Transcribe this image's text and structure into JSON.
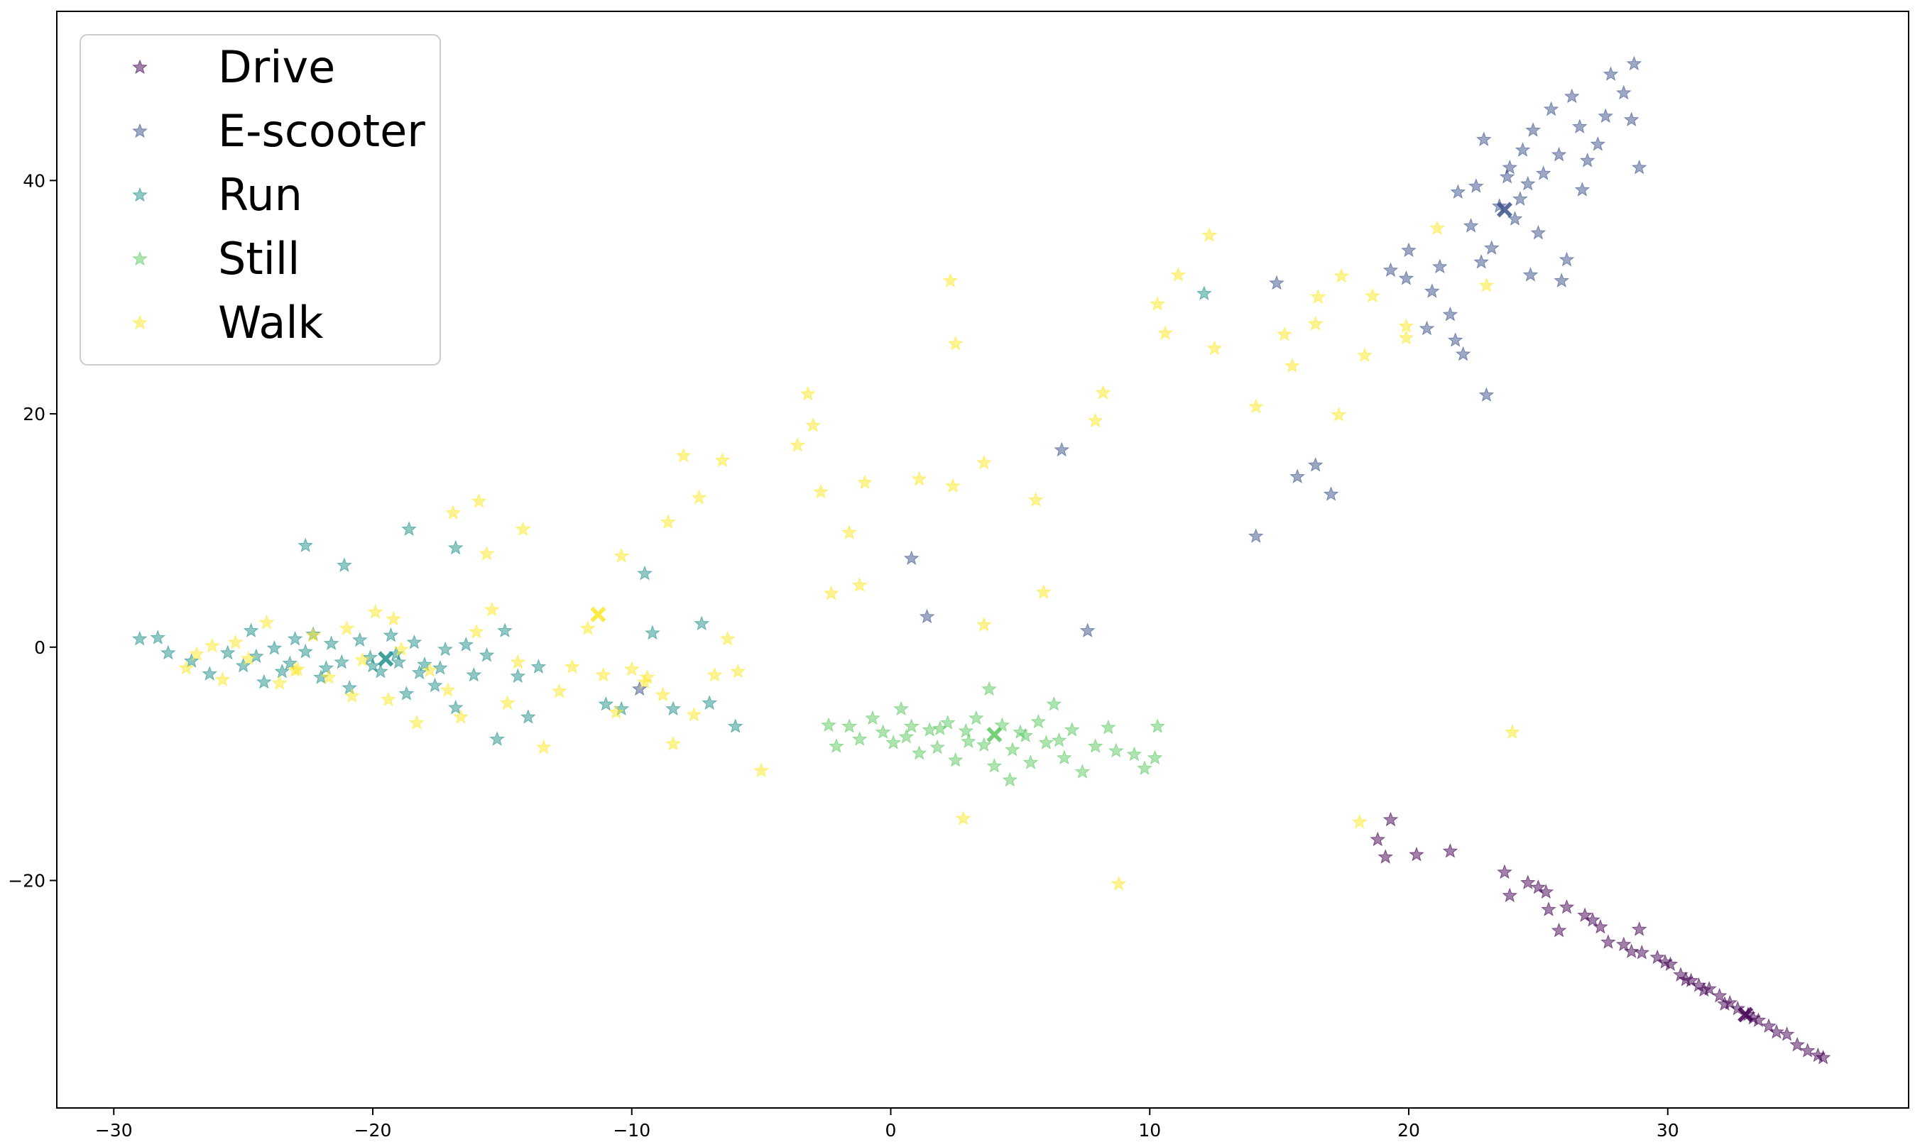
{
  "chart_data": {
    "type": "scatter",
    "marker": "star",
    "title": "",
    "xlabel": "",
    "ylabel": "",
    "xlim": [
      -32.2,
      39.3
    ],
    "ylim": [
      -39.5,
      54.5
    ],
    "xticks": [
      -30,
      -20,
      -10,
      0,
      10,
      20,
      30
    ],
    "yticks": [
      -20,
      0,
      20,
      40
    ],
    "xtick_labels": [
      "−30",
      "−20",
      "−10",
      "0",
      "10",
      "20",
      "30"
    ],
    "ytick_labels": [
      "−20",
      "0",
      "20",
      "40"
    ],
    "grid": false,
    "legend_position": "top-left",
    "series": [
      {
        "name": "Drive",
        "color": "#440154",
        "centroid": [
          33.0,
          -31.5
        ],
        "points": [
          [
            18.8,
            -16.5
          ],
          [
            19.1,
            -18.0
          ],
          [
            19.3,
            -14.8
          ],
          [
            20.3,
            -17.8
          ],
          [
            21.6,
            -17.5
          ],
          [
            23.7,
            -19.3
          ],
          [
            23.9,
            -21.3
          ],
          [
            24.6,
            -20.2
          ],
          [
            25.0,
            -20.6
          ],
          [
            25.3,
            -21.0
          ],
          [
            25.4,
            -22.5
          ],
          [
            26.1,
            -22.3
          ],
          [
            25.8,
            -24.3
          ],
          [
            26.8,
            -23.0
          ],
          [
            27.1,
            -23.4
          ],
          [
            27.4,
            -24.0
          ],
          [
            27.7,
            -25.3
          ],
          [
            28.3,
            -25.5
          ],
          [
            28.9,
            -24.2
          ],
          [
            29.0,
            -26.2
          ],
          [
            29.6,
            -26.6
          ],
          [
            30.1,
            -27.2
          ],
          [
            30.5,
            -28.1
          ],
          [
            30.9,
            -28.6
          ],
          [
            31.2,
            -29.0
          ],
          [
            31.6,
            -29.3
          ],
          [
            32.0,
            -29.9
          ],
          [
            32.4,
            -30.5
          ],
          [
            32.7,
            -31.0
          ],
          [
            33.1,
            -31.5
          ],
          [
            33.5,
            -32.0
          ],
          [
            33.9,
            -32.5
          ],
          [
            34.2,
            -33.0
          ],
          [
            34.6,
            -33.2
          ],
          [
            35.0,
            -34.1
          ],
          [
            35.4,
            -34.6
          ],
          [
            35.8,
            -35.0
          ],
          [
            36.0,
            -35.2
          ],
          [
            30.7,
            -28.5
          ],
          [
            31.4,
            -29.4
          ],
          [
            32.2,
            -30.6
          ],
          [
            33.3,
            -31.8
          ],
          [
            28.6,
            -26.1
          ],
          [
            29.9,
            -27.0
          ]
        ]
      },
      {
        "name": "E-scooter",
        "color": "#3b528b",
        "centroid": [
          23.7,
          37.5
        ],
        "points": [
          [
            -9.7,
            -3.6
          ],
          [
            0.8,
            7.6
          ],
          [
            1.4,
            2.6
          ],
          [
            6.6,
            16.9
          ],
          [
            7.6,
            1.4
          ],
          [
            14.1,
            9.5
          ],
          [
            14.9,
            31.2
          ],
          [
            15.7,
            14.6
          ],
          [
            16.4,
            15.6
          ],
          [
            17.0,
            13.1
          ],
          [
            19.3,
            32.3
          ],
          [
            19.9,
            31.6
          ],
          [
            20.0,
            34.0
          ],
          [
            20.7,
            27.3
          ],
          [
            20.9,
            30.5
          ],
          [
            21.2,
            32.6
          ],
          [
            21.6,
            28.5
          ],
          [
            21.8,
            26.3
          ],
          [
            22.1,
            25.1
          ],
          [
            22.4,
            36.1
          ],
          [
            22.6,
            39.5
          ],
          [
            22.8,
            33.0
          ],
          [
            23.0,
            21.6
          ],
          [
            23.2,
            34.2
          ],
          [
            23.5,
            37.8
          ],
          [
            23.9,
            41.1
          ],
          [
            24.1,
            36.7
          ],
          [
            24.4,
            42.6
          ],
          [
            24.6,
            39.7
          ],
          [
            24.8,
            44.3
          ],
          [
            25.2,
            40.6
          ],
          [
            25.5,
            46.1
          ],
          [
            25.8,
            42.2
          ],
          [
            26.1,
            33.2
          ],
          [
            26.3,
            47.2
          ],
          [
            26.6,
            44.6
          ],
          [
            26.9,
            41.7
          ],
          [
            27.3,
            43.1
          ],
          [
            27.6,
            45.5
          ],
          [
            27.8,
            49.1
          ],
          [
            28.3,
            47.5
          ],
          [
            28.6,
            45.2
          ],
          [
            28.7,
            50.0
          ],
          [
            28.9,
            41.1
          ],
          [
            25.0,
            35.5
          ],
          [
            24.3,
            38.4
          ],
          [
            23.8,
            40.3
          ],
          [
            22.9,
            43.5
          ],
          [
            21.9,
            39.0
          ],
          [
            25.9,
            31.4
          ],
          [
            24.7,
            31.9
          ],
          [
            26.7,
            39.2
          ]
        ]
      },
      {
        "name": "Run",
        "color": "#21918c",
        "centroid": [
          -19.5,
          -1.0
        ],
        "points": [
          [
            -29.0,
            0.7
          ],
          [
            -28.3,
            0.8
          ],
          [
            -27.9,
            -0.5
          ],
          [
            -27.0,
            -1.2
          ],
          [
            -26.3,
            -2.3
          ],
          [
            -25.6,
            -0.5
          ],
          [
            -25.0,
            -1.6
          ],
          [
            -24.7,
            1.4
          ],
          [
            -24.2,
            -3.0
          ],
          [
            -23.8,
            -0.1
          ],
          [
            -23.5,
            -2.1
          ],
          [
            -23.0,
            0.7
          ],
          [
            -22.6,
            -0.4
          ],
          [
            -22.3,
            1.1
          ],
          [
            -22.0,
            -2.6
          ],
          [
            -21.6,
            0.3
          ],
          [
            -21.2,
            -1.3
          ],
          [
            -20.9,
            -3.5
          ],
          [
            -20.5,
            0.6
          ],
          [
            -20.1,
            -0.9
          ],
          [
            -19.7,
            -2.1
          ],
          [
            -19.3,
            1.0
          ],
          [
            -19.0,
            -1.3
          ],
          [
            -18.7,
            -4.0
          ],
          [
            -18.4,
            0.4
          ],
          [
            -18.0,
            -1.5
          ],
          [
            -17.6,
            -3.3
          ],
          [
            -17.2,
            -0.2
          ],
          [
            -16.8,
            -5.2
          ],
          [
            -16.4,
            0.2
          ],
          [
            -16.1,
            -2.4
          ],
          [
            -15.6,
            -0.7
          ],
          [
            -15.2,
            -7.9
          ],
          [
            -14.9,
            1.4
          ],
          [
            -14.4,
            -2.5
          ],
          [
            -14.0,
            -6.0
          ],
          [
            -13.6,
            -1.7
          ],
          [
            -22.6,
            8.7
          ],
          [
            -21.1,
            7.0
          ],
          [
            -18.6,
            10.1
          ],
          [
            -16.8,
            8.5
          ],
          [
            -11.0,
            -4.9
          ],
          [
            -10.4,
            -5.3
          ],
          [
            -9.5,
            6.3
          ],
          [
            -9.2,
            1.2
          ],
          [
            -8.4,
            -5.3
          ],
          [
            -7.3,
            2.0
          ],
          [
            -7.0,
            -4.8
          ],
          [
            -6.0,
            -6.8
          ],
          [
            12.1,
            30.3
          ],
          [
            -21.8,
            -1.8
          ],
          [
            -20.0,
            -1.6
          ],
          [
            -19.1,
            -0.6
          ],
          [
            -18.2,
            -2.2
          ],
          [
            -17.4,
            -1.8
          ],
          [
            -24.5,
            -0.8
          ],
          [
            -23.2,
            -1.4
          ]
        ]
      },
      {
        "name": "Still",
        "color": "#5ec962",
        "centroid": [
          4.0,
          -7.5
        ],
        "points": [
          [
            -2.4,
            -6.7
          ],
          [
            -2.1,
            -8.5
          ],
          [
            -1.6,
            -6.8
          ],
          [
            -1.2,
            -7.9
          ],
          [
            -0.7,
            -6.1
          ],
          [
            -0.3,
            -7.3
          ],
          [
            0.1,
            -8.2
          ],
          [
            0.4,
            -5.3
          ],
          [
            0.8,
            -6.8
          ],
          [
            1.1,
            -9.1
          ],
          [
            1.5,
            -7.1
          ],
          [
            1.8,
            -8.6
          ],
          [
            2.2,
            -6.5
          ],
          [
            2.5,
            -9.7
          ],
          [
            2.9,
            -7.2
          ],
          [
            3.3,
            -6.1
          ],
          [
            3.6,
            -8.4
          ],
          [
            3.8,
            -3.6
          ],
          [
            4.0,
            -10.2
          ],
          [
            4.3,
            -6.7
          ],
          [
            4.7,
            -8.8
          ],
          [
            5.0,
            -7.3
          ],
          [
            5.4,
            -9.9
          ],
          [
            5.7,
            -6.4
          ],
          [
            6.0,
            -8.2
          ],
          [
            6.3,
            -4.9
          ],
          [
            6.7,
            -9.5
          ],
          [
            7.0,
            -7.1
          ],
          [
            7.4,
            -10.7
          ],
          [
            7.9,
            -8.5
          ],
          [
            8.4,
            -6.9
          ],
          [
            8.7,
            -8.9
          ],
          [
            9.4,
            -9.2
          ],
          [
            9.8,
            -10.4
          ],
          [
            10.2,
            -9.5
          ],
          [
            10.3,
            -6.8
          ],
          [
            4.6,
            -11.4
          ],
          [
            3.0,
            -8.1
          ],
          [
            1.9,
            -7.0
          ],
          [
            5.2,
            -7.6
          ],
          [
            6.5,
            -8.0
          ],
          [
            0.6,
            -7.7
          ]
        ]
      },
      {
        "name": "Walk",
        "color": "#fde725",
        "centroid": [
          -11.3,
          2.8
        ],
        "points": [
          [
            -27.2,
            -1.8
          ],
          [
            -26.8,
            -0.6
          ],
          [
            -26.2,
            0.1
          ],
          [
            -25.8,
            -2.8
          ],
          [
            -25.3,
            0.4
          ],
          [
            -24.8,
            -1.0
          ],
          [
            -24.1,
            2.1
          ],
          [
            -23.6,
            -3.1
          ],
          [
            -22.9,
            -1.9
          ],
          [
            -22.3,
            1.0
          ],
          [
            -21.7,
            -2.6
          ],
          [
            -21.0,
            1.6
          ],
          [
            -20.4,
            -1.1
          ],
          [
            -19.9,
            3.0
          ],
          [
            -19.4,
            -4.5
          ],
          [
            -18.9,
            -0.2
          ],
          [
            -18.3,
            -6.5
          ],
          [
            -17.8,
            -2.0
          ],
          [
            -17.1,
            -3.7
          ],
          [
            -16.6,
            -6.0
          ],
          [
            -16.0,
            1.3
          ],
          [
            -15.4,
            3.2
          ],
          [
            -14.8,
            -4.8
          ],
          [
            -14.4,
            -1.3
          ],
          [
            -13.4,
            -8.6
          ],
          [
            -12.8,
            -3.8
          ],
          [
            -12.3,
            -1.7
          ],
          [
            -11.7,
            1.6
          ],
          [
            -11.1,
            -2.4
          ],
          [
            -10.6,
            -5.6
          ],
          [
            -10.0,
            -1.9
          ],
          [
            -9.5,
            -3.0
          ],
          [
            -8.8,
            -4.1
          ],
          [
            -8.4,
            -8.3
          ],
          [
            -7.6,
            -5.8
          ],
          [
            -6.8,
            -2.4
          ],
          [
            -6.3,
            0.7
          ],
          [
            -5.9,
            -2.1
          ],
          [
            -5.0,
            -10.6
          ],
          [
            -16.9,
            11.5
          ],
          [
            -15.9,
            12.5
          ],
          [
            -15.6,
            8.0
          ],
          [
            -14.2,
            10.1
          ],
          [
            -10.4,
            7.8
          ],
          [
            -8.6,
            10.7
          ],
          [
            -8.0,
            16.4
          ],
          [
            -7.4,
            12.8
          ],
          [
            -6.5,
            16.0
          ],
          [
            -3.6,
            17.3
          ],
          [
            -3.2,
            21.7
          ],
          [
            -3.0,
            19.0
          ],
          [
            -2.7,
            13.3
          ],
          [
            -2.3,
            4.6
          ],
          [
            -1.6,
            9.8
          ],
          [
            -1.2,
            5.3
          ],
          [
            -1.0,
            14.1
          ],
          [
            1.1,
            14.4
          ],
          [
            2.3,
            31.4
          ],
          [
            2.4,
            13.8
          ],
          [
            2.5,
            26.0
          ],
          [
            3.6,
            15.8
          ],
          [
            3.6,
            1.9
          ],
          [
            5.6,
            12.6
          ],
          [
            5.9,
            4.7
          ],
          [
            7.9,
            19.4
          ],
          [
            8.2,
            21.8
          ],
          [
            10.3,
            29.4
          ],
          [
            10.6,
            26.9
          ],
          [
            11.1,
            31.9
          ],
          [
            12.3,
            35.3
          ],
          [
            12.5,
            25.6
          ],
          [
            14.1,
            20.6
          ],
          [
            15.2,
            26.8
          ],
          [
            15.5,
            24.1
          ],
          [
            16.4,
            27.7
          ],
          [
            16.5,
            30.0
          ],
          [
            17.3,
            19.9
          ],
          [
            17.4,
            31.8
          ],
          [
            18.3,
            25.0
          ],
          [
            18.6,
            30.1
          ],
          [
            19.9,
            27.5
          ],
          [
            19.9,
            26.5
          ],
          [
            21.1,
            35.9
          ],
          [
            23.0,
            31.0
          ],
          [
            24.0,
            -7.3
          ],
          [
            18.1,
            -15.0
          ],
          [
            8.8,
            -20.3
          ],
          [
            2.8,
            -14.7
          ],
          [
            -9.4,
            -2.6
          ],
          [
            -20.8,
            -4.2
          ],
          [
            -19.2,
            2.4
          ],
          [
            -23.0,
            -2.0
          ]
        ]
      }
    ]
  }
}
